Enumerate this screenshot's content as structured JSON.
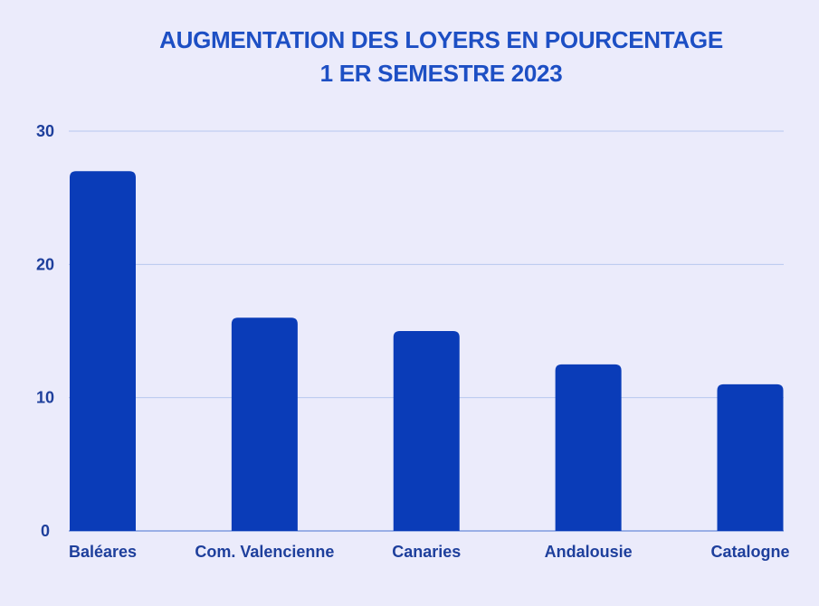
{
  "colors": {
    "background": "#ebebfb",
    "title": "#1d4fc4",
    "bar": "#0a3cb8",
    "text": "#1e3f9c",
    "grid": "#b7c7ef",
    "axis": "#7f9be0"
  },
  "chart_data": {
    "type": "bar",
    "title": "AUGMENTATION DES LOYERS EN POURCENTAGE",
    "subtitle": "1 ER SEMESTRE 2023",
    "xlabel": "",
    "ylabel": "",
    "categories": [
      "Baléares",
      "Com. Valencienne",
      "Canaries",
      "Andalousie",
      "Catalogne"
    ],
    "values": [
      27,
      16,
      15,
      12.5,
      11
    ],
    "yticks": [
      "0",
      "10",
      "20",
      "30"
    ],
    "ylim": [
      0,
      30
    ],
    "grid": true,
    "legend": "none"
  }
}
